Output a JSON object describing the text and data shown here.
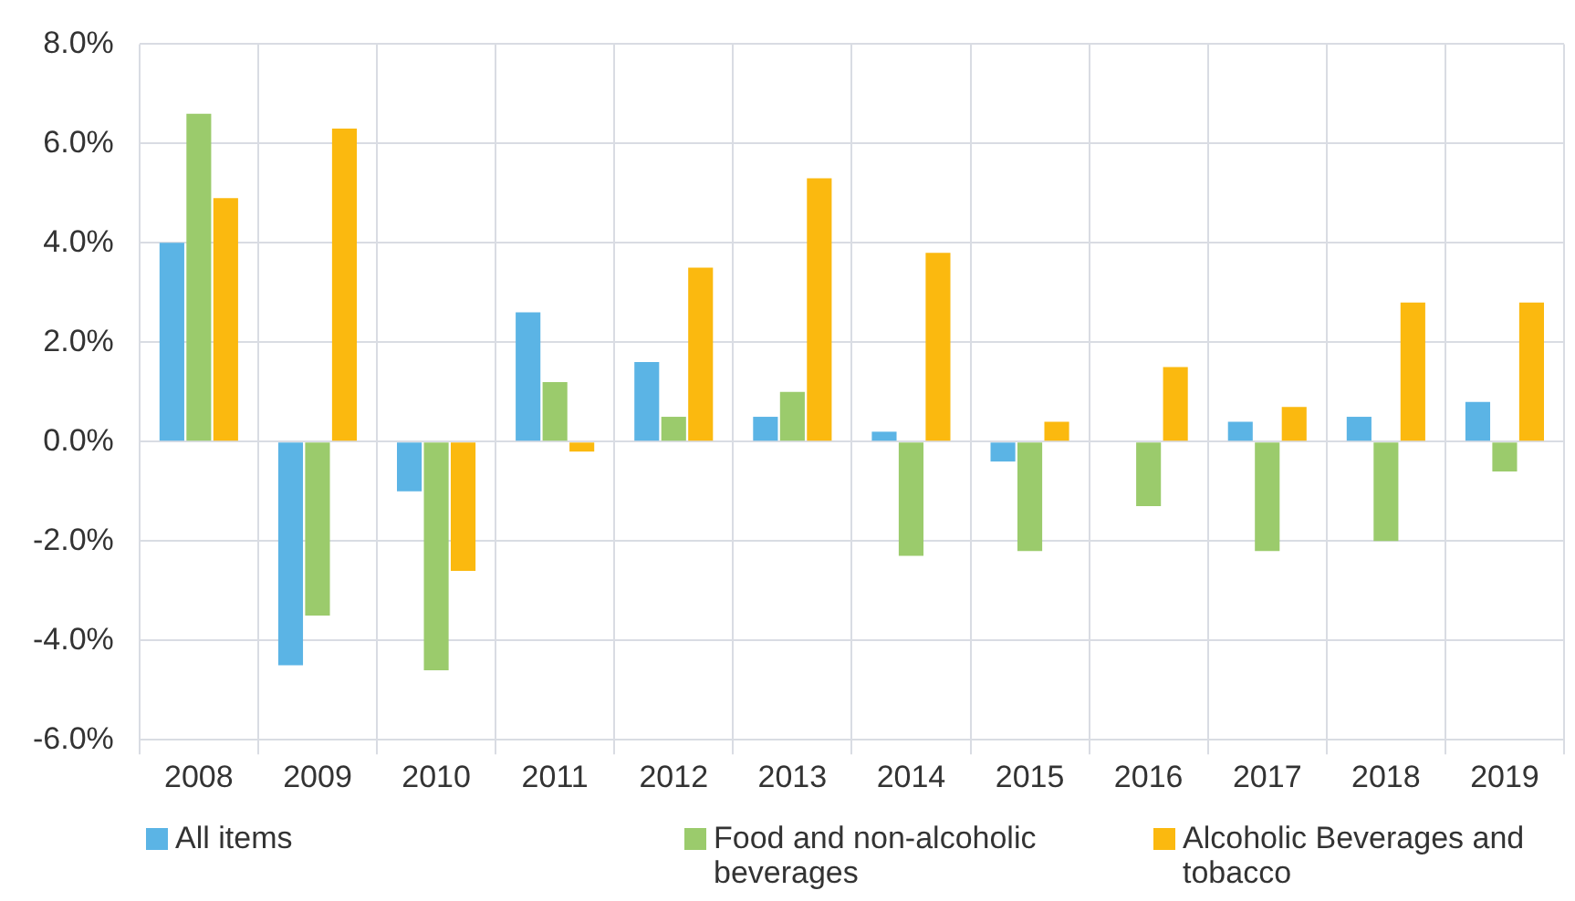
{
  "chart_data": {
    "type": "bar",
    "categories": [
      "2008",
      "2009",
      "2010",
      "2011",
      "2012",
      "2013",
      "2014",
      "2015",
      "2016",
      "2017",
      "2018",
      "2019"
    ],
    "series": [
      {
        "name": "All items",
        "color": "#5bb4e5",
        "values": [
          4.0,
          -4.5,
          -1.0,
          2.6,
          1.6,
          0.5,
          0.2,
          -0.4,
          0,
          0.4,
          0.5,
          0.8
        ]
      },
      {
        "name": "Food and non-alcoholic beverages",
        "color": "#9bcb6c",
        "values": [
          6.6,
          -3.5,
          -4.6,
          1.2,
          0.5,
          1.0,
          -2.3,
          -2.2,
          -1.3,
          -2.2,
          -2.0,
          -0.6
        ]
      },
      {
        "name": "Alcoholic Beverages and tobacco",
        "color": "#fbb90f",
        "values": [
          4.9,
          6.3,
          -2.6,
          -0.2,
          3.5,
          5.3,
          3.8,
          0.4,
          1.5,
          0.7,
          2.8,
          2.8
        ]
      }
    ],
    "ylim": [
      -6,
      8
    ],
    "yticks": [
      {
        "value": -6,
        "label": "-6.0%"
      },
      {
        "value": -4,
        "label": "-4.0%"
      },
      {
        "value": -2,
        "label": "-2.0%"
      },
      {
        "value": 0,
        "label": "0.0%"
      },
      {
        "value": 2,
        "label": "2.0%"
      },
      {
        "value": 4,
        "label": "4.0%"
      },
      {
        "value": 6,
        "label": "6.0%"
      },
      {
        "value": 8,
        "label": "8.0%"
      }
    ],
    "grid": true,
    "legend": "bottom"
  }
}
